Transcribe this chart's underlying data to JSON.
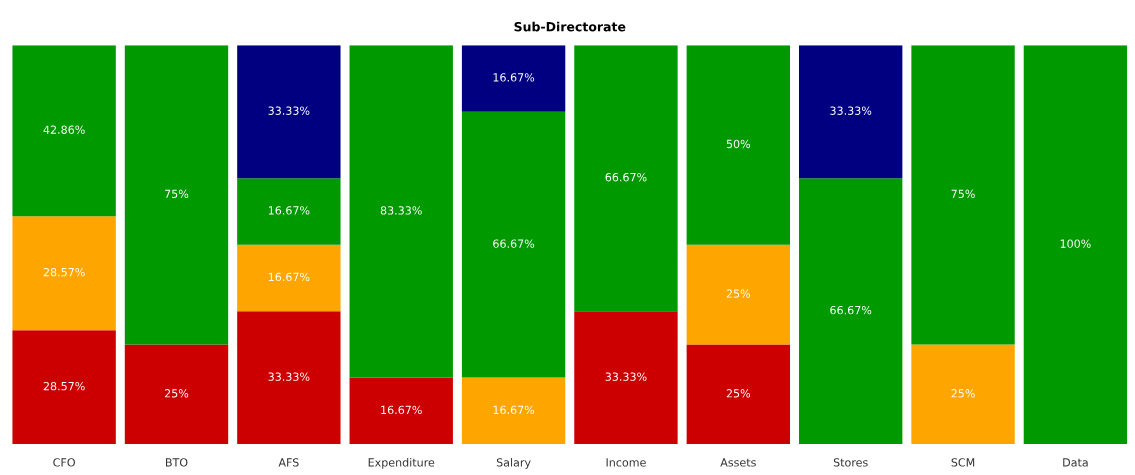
{
  "chart_data": {
    "type": "bar",
    "title": "Sub-Directorate",
    "stacked": true,
    "categories": [
      "CFO",
      "BTO",
      "AFS",
      "Expenditure",
      "Salary",
      "Income",
      "Assets",
      "Stores",
      "SCM",
      "Data"
    ],
    "series": [
      {
        "color": "#cc0000",
        "values": [
          28.57,
          25,
          33.33,
          16.67,
          null,
          33.33,
          25,
          null,
          null,
          null
        ],
        "value_labels": [
          "28.57%",
          "25%",
          "33.33%",
          "16.67%",
          null,
          "33.33%",
          "25%",
          null,
          null,
          null
        ]
      },
      {
        "color": "#ffa500",
        "values": [
          28.57,
          null,
          16.67,
          null,
          16.67,
          null,
          25,
          null,
          25,
          null
        ],
        "value_labels": [
          "28.57%",
          null,
          "16.67%",
          null,
          "16.67%",
          null,
          "25%",
          null,
          "25%",
          null
        ]
      },
      {
        "color": "#009900",
        "values": [
          42.86,
          75,
          16.67,
          83.33,
          66.67,
          66.67,
          50,
          66.67,
          75,
          100
        ],
        "value_labels": [
          "42.86%",
          "75%",
          "16.67%",
          "83.33%",
          "66.67%",
          "66.67%",
          "50%",
          "66.67%",
          "75%",
          "100%"
        ]
      },
      {
        "color": "#000080",
        "values": [
          null,
          null,
          33.33,
          null,
          16.67,
          null,
          null,
          33.33,
          null,
          null
        ],
        "value_labels": [
          null,
          null,
          "33.33%",
          null,
          "16.67%",
          null,
          null,
          "33.33%",
          null,
          null
        ]
      }
    ],
    "grid": false,
    "legend": false
  }
}
